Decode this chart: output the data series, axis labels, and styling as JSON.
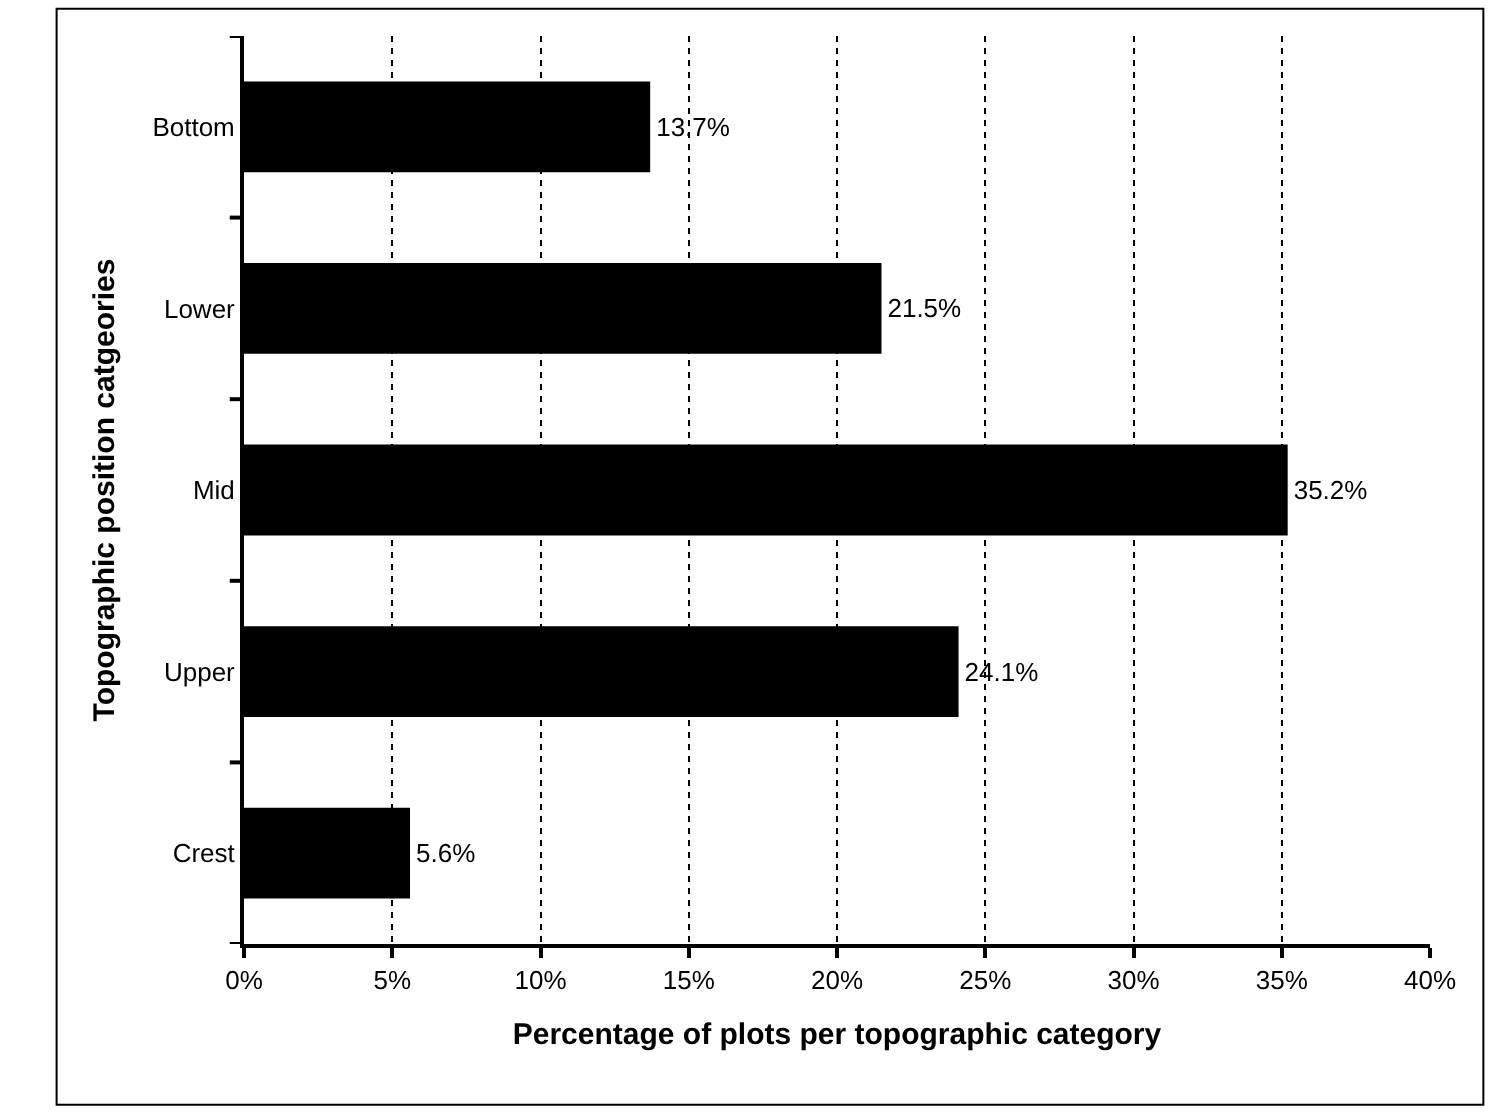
{
  "chart_data": {
    "type": "bar",
    "orientation": "horizontal",
    "categories": [
      "Bottom",
      "Lower",
      "Mid",
      "Upper",
      "Crest"
    ],
    "values": [
      13.7,
      21.5,
      35.2,
      24.1,
      5.6
    ],
    "value_labels": [
      "13.7%",
      "21.5%",
      "35.2%",
      "24.1%",
      "5.6%"
    ],
    "color": "#000000",
    "xlabel": "Percentage of plots per topographic category",
    "ylabel": "Topographic position catgeories",
    "xlim": [
      0,
      40
    ],
    "xticks": [
      {
        "value": 0,
        "label": "0%"
      },
      {
        "value": 5,
        "label": "5%"
      },
      {
        "value": 10,
        "label": "10%"
      },
      {
        "value": 15,
        "label": "15%"
      },
      {
        "value": 20,
        "label": "20%"
      },
      {
        "value": 25,
        "label": "25%"
      },
      {
        "value": 30,
        "label": "30%"
      },
      {
        "value": 35,
        "label": "35%"
      },
      {
        "value": 40,
        "label": "40%"
      }
    ],
    "grid": "x",
    "legend": false
  }
}
